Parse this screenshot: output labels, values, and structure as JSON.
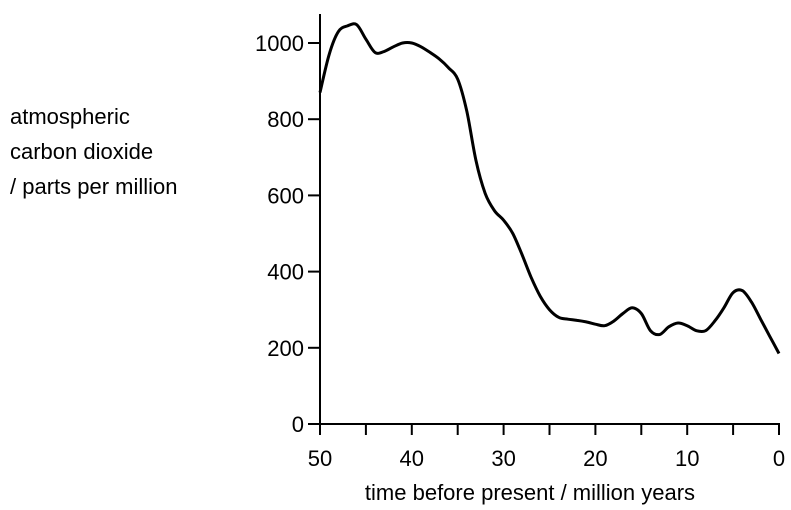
{
  "chart_data": {
    "type": "line",
    "title": "",
    "ylabel_lines": [
      "atmospheric",
      "carbon dioxide",
      "/ parts per million"
    ],
    "xlabel": "time before present / million years",
    "xlim": [
      50,
      0
    ],
    "ylim": [
      0,
      1000
    ],
    "x_ticks": [
      50,
      45,
      40,
      35,
      30,
      25,
      20,
      15,
      10,
      5,
      0
    ],
    "x_tick_labels": [
      "50",
      "40",
      "30",
      "20",
      "10",
      "0"
    ],
    "y_tick_labels": [
      "0",
      "200",
      "400",
      "600",
      "800",
      "1000"
    ],
    "grid": false,
    "color": "#000000",
    "series": [
      {
        "x": [
          50,
          49,
          48,
          47,
          46,
          45,
          44,
          43,
          42,
          41,
          40,
          39,
          38,
          37,
          36,
          35,
          34,
          33,
          32,
          31,
          30,
          29,
          28,
          27,
          26,
          25,
          24,
          23,
          22,
          21,
          20,
          19,
          18,
          17,
          16,
          15,
          14,
          13,
          12,
          11,
          10,
          9,
          8,
          7,
          6,
          5,
          4,
          3,
          2,
          1,
          0
        ],
        "values": [
          870,
          970,
          1030,
          1045,
          1048,
          1010,
          975,
          978,
          990,
          1000,
          1000,
          990,
          975,
          958,
          935,
          905,
          820,
          690,
          605,
          560,
          535,
          500,
          445,
          385,
          335,
          300,
          280,
          275,
          272,
          268,
          262,
          258,
          270,
          290,
          305,
          290,
          245,
          235,
          255,
          265,
          258,
          245,
          245,
          270,
          305,
          345,
          350,
          320,
          275,
          230,
          185
        ]
      }
    ]
  }
}
